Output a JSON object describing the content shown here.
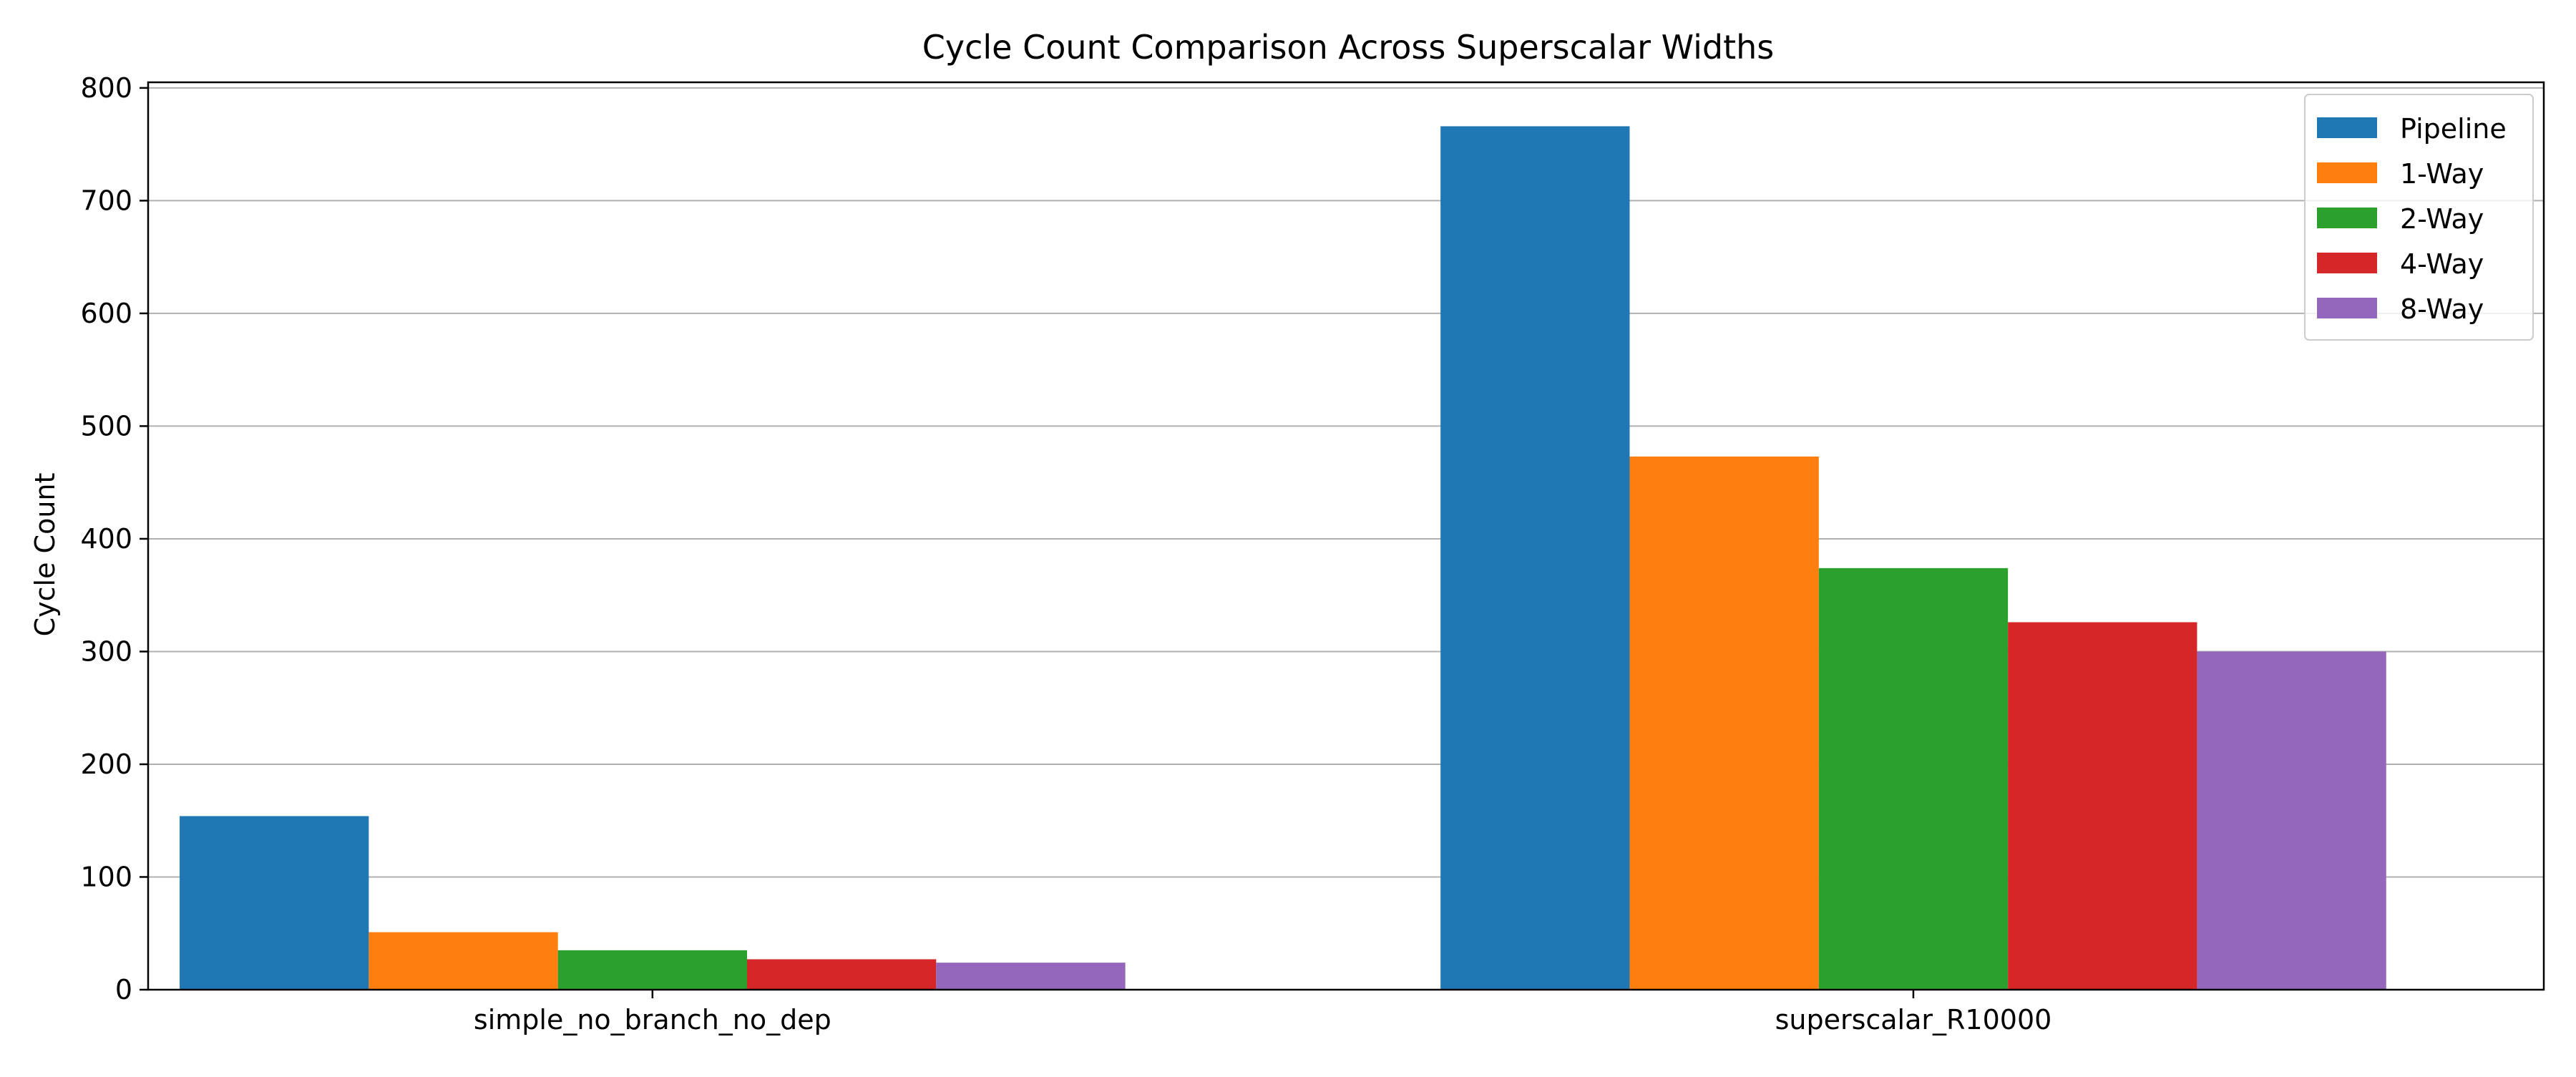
{
  "chart_data": {
    "type": "bar",
    "title": "Cycle Count Comparison Across Superscalar Widths",
    "xlabel": "",
    "ylabel": "Cycle Count",
    "categories": [
      "simple_no_branch_no_dep",
      "superscalar_R10000"
    ],
    "series": [
      {
        "name": "Pipeline",
        "color": "#1f77b4",
        "values": [
          154,
          766
        ]
      },
      {
        "name": "1-Way",
        "color": "#ff7f0e",
        "values": [
          51,
          473
        ]
      },
      {
        "name": "2-Way",
        "color": "#2ca02c",
        "values": [
          35,
          374
        ]
      },
      {
        "name": "4-Way",
        "color": "#d62728",
        "values": [
          27,
          326
        ]
      },
      {
        "name": "8-Way",
        "color": "#9467bd",
        "values": [
          24,
          300
        ]
      }
    ],
    "ylim": [
      0,
      805
    ],
    "yticks": [
      "0",
      "100",
      "200",
      "300",
      "400",
      "500",
      "600",
      "700",
      "800"
    ],
    "grid": "horizontal",
    "legend_position": "top-right"
  }
}
